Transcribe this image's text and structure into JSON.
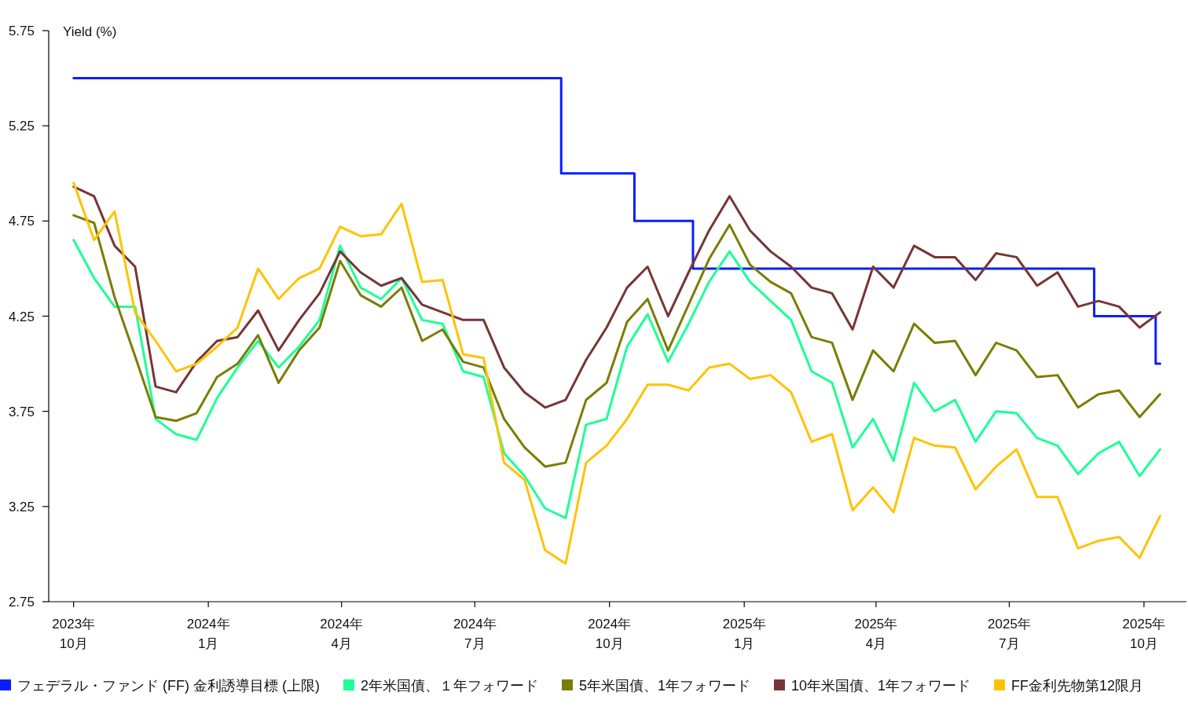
{
  "chart_data": {
    "type": "line",
    "ylabel": "Yield (%)",
    "x": [
      "2023-10-01",
      "2023-10-15",
      "2023-10-29",
      "2023-11-12",
      "2023-11-26",
      "2023-12-10",
      "2023-12-24",
      "2024-01-07",
      "2024-01-21",
      "2024-02-04",
      "2024-02-18",
      "2024-03-03",
      "2024-03-17",
      "2024-03-31",
      "2024-04-14",
      "2024-04-28",
      "2024-05-12",
      "2024-05-26",
      "2024-06-09",
      "2024-06-23",
      "2024-07-07",
      "2024-07-21",
      "2024-08-04",
      "2024-08-18",
      "2024-09-01",
      "2024-09-15",
      "2024-09-29",
      "2024-10-13",
      "2024-10-27",
      "2024-11-10",
      "2024-11-24",
      "2024-12-08",
      "2024-12-22",
      "2025-01-05",
      "2025-01-19",
      "2025-02-02",
      "2025-02-16",
      "2025-03-02",
      "2025-03-16",
      "2025-03-30",
      "2025-04-13",
      "2025-04-27",
      "2025-05-11",
      "2025-05-25",
      "2025-06-08",
      "2025-06-22",
      "2025-07-06",
      "2025-07-20",
      "2025-08-03",
      "2025-08-17",
      "2025-08-31",
      "2025-09-14",
      "2025-09-28",
      "2025-10-12"
    ],
    "series": [
      {
        "name": "フェデラル・ファンド (FF) 金利誘導目標 (上限)",
        "color": "#0a1eff",
        "type": "step",
        "x": [
          "2023-10-01",
          "2024-08-29",
          "2024-10-18",
          "2024-11-27",
          "2025-08-28",
          "2025-10-09",
          "2025-10-12"
        ],
        "values": [
          5.5,
          5.0,
          4.75,
          4.5,
          4.25,
          4.0,
          4.0
        ]
      },
      {
        "name": "2年米国債、１年フォワード",
        "color": "#1eff96",
        "values": [
          4.65,
          4.45,
          4.3,
          4.3,
          3.71,
          3.63,
          3.6,
          3.82,
          3.98,
          4.12,
          3.98,
          4.09,
          4.23,
          4.62,
          4.4,
          4.34,
          4.45,
          4.23,
          4.21,
          3.96,
          3.93,
          3.53,
          3.41,
          3.24,
          3.19,
          3.68,
          3.71,
          4.09,
          4.26,
          4.01,
          4.21,
          4.43,
          4.59,
          4.43,
          4.33,
          4.23,
          3.96,
          3.9,
          3.56,
          3.71,
          3.49,
          3.9,
          3.75,
          3.81,
          3.59,
          3.75,
          3.74,
          3.61,
          3.57,
          3.42,
          3.53,
          3.59,
          3.41,
          3.55
        ]
      },
      {
        "name": "5年米国債、1年フォワード",
        "color": "#7a7d00",
        "values": [
          4.78,
          4.74,
          4.35,
          4.04,
          3.72,
          3.7,
          3.74,
          3.93,
          4.0,
          4.15,
          3.9,
          4.07,
          4.19,
          4.54,
          4.36,
          4.3,
          4.4,
          4.12,
          4.18,
          4.01,
          3.98,
          3.71,
          3.56,
          3.46,
          3.48,
          3.81,
          3.9,
          4.22,
          4.34,
          4.07,
          4.31,
          4.55,
          4.73,
          4.52,
          4.43,
          4.37,
          4.14,
          4.11,
          3.81,
          4.07,
          3.96,
          4.21,
          4.11,
          4.12,
          3.94,
          4.11,
          4.07,
          3.93,
          3.94,
          3.77,
          3.84,
          3.86,
          3.72,
          3.84
        ]
      },
      {
        "name": "10年米国債、1年フォワード",
        "color": "#773535",
        "values": [
          4.93,
          4.88,
          4.62,
          4.51,
          3.88,
          3.85,
          4.01,
          4.12,
          4.14,
          4.28,
          4.07,
          4.23,
          4.37,
          4.59,
          4.48,
          4.41,
          4.45,
          4.31,
          4.27,
          4.23,
          4.23,
          3.98,
          3.85,
          3.77,
          3.81,
          4.02,
          4.19,
          4.4,
          4.51,
          4.25,
          4.48,
          4.7,
          4.88,
          4.7,
          4.59,
          4.51,
          4.4,
          4.37,
          4.18,
          4.51,
          4.4,
          4.62,
          4.56,
          4.56,
          4.44,
          4.58,
          4.56,
          4.41,
          4.48,
          4.3,
          4.33,
          4.3,
          4.19,
          4.27
        ]
      },
      {
        "name": "FF金利先物第12限月",
        "color": "#ffc300",
        "values": [
          4.95,
          4.65,
          4.8,
          4.27,
          4.12,
          3.96,
          4.0,
          4.09,
          4.19,
          4.5,
          4.34,
          4.45,
          4.5,
          4.72,
          4.67,
          4.68,
          4.84,
          4.43,
          4.44,
          4.05,
          4.03,
          3.48,
          3.39,
          3.02,
          2.95,
          3.48,
          3.57,
          3.71,
          3.89,
          3.89,
          3.86,
          3.98,
          4.0,
          3.92,
          3.94,
          3.85,
          3.59,
          3.63,
          3.23,
          3.35,
          3.22,
          3.61,
          3.57,
          3.56,
          3.34,
          3.46,
          3.55,
          3.3,
          3.3,
          3.03,
          3.07,
          3.09,
          2.98,
          3.2
        ]
      }
    ],
    "xlim": [
      "2023-09-14",
      "2025-10-30"
    ],
    "xticks": [
      {
        "value": "2023-10-01",
        "label": "2023年\n10月"
      },
      {
        "value": "2024-01-01",
        "label": "2024年\n1月"
      },
      {
        "value": "2024-04-01",
        "label": "2024年\n4月"
      },
      {
        "value": "2024-07-01",
        "label": "2024年\n7月"
      },
      {
        "value": "2024-10-01",
        "label": "2024年\n10月"
      },
      {
        "value": "2025-01-01",
        "label": "2025年\n1月"
      },
      {
        "value": "2025-04-01",
        "label": "2025年\n4月"
      },
      {
        "value": "2025-07-01",
        "label": "2025年\n7月"
      },
      {
        "value": "2025-10-01",
        "label": "2025年\n10月"
      }
    ],
    "ylim": [
      2.75,
      5.75
    ],
    "yticks": [
      2.75,
      3.25,
      3.75,
      4.25,
      4.75,
      5.25,
      5.75
    ],
    "grid": false,
    "legend": "bottom",
    "marker": "none",
    "line_style": "solid"
  }
}
